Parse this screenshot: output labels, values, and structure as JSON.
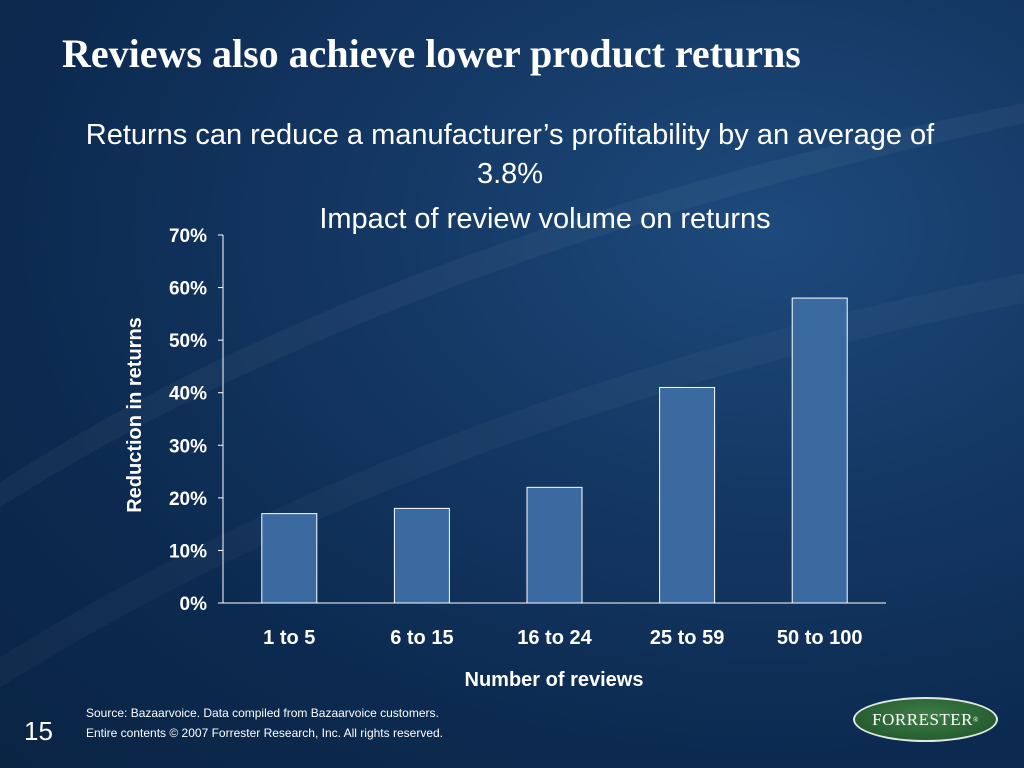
{
  "slide": {
    "title": "Reviews also achieve lower product returns",
    "subtitle": "Returns can reduce a manufacturer’s profitability by an average of 3.8%",
    "page_number": "15",
    "source_note": "Source: Bazaarvoice. Data compiled from Bazaarvoice customers.",
    "copyright_note": "Entire contents © 2007  Forrester Research, Inc. All rights reserved.",
    "logo_text": "FORRESTER",
    "logo_mark": "®",
    "colors": {
      "background": "#143864",
      "bar": "#3a6aa0",
      "bar_border": "#ffffff",
      "logo_green": "#2a6334"
    }
  },
  "chart_data": {
    "type": "bar",
    "title": "Impact of review volume on returns",
    "xlabel": "Number of reviews",
    "ylabel": "Reduction in returns",
    "categories": [
      "1 to 5",
      "6 to 15",
      "16 to 24",
      "25 to 59",
      "50 to 100"
    ],
    "values": [
      17,
      18,
      22,
      41,
      58
    ],
    "ylim": [
      0,
      70
    ],
    "yticks": [
      0,
      10,
      20,
      30,
      40,
      50,
      60,
      70
    ],
    "ytick_labels": [
      "0%",
      "10%",
      "20%",
      "30%",
      "40%",
      "50%",
      "60%",
      "70%"
    ],
    "grid": false,
    "legend": "none"
  }
}
